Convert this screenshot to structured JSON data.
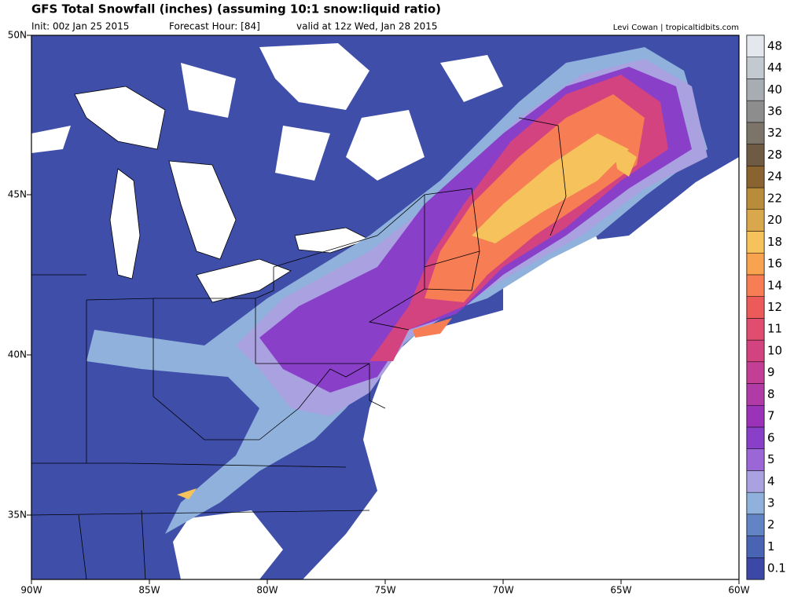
{
  "header": {
    "title": "GFS Total Snowfall (inches) (assuming 10:1 snow:liquid ratio)",
    "init": "Init: 00z Jan 25 2015",
    "forecast_hour": "Forecast Hour: [84]",
    "valid": "valid at 12z Wed, Jan 28 2015",
    "credit": "Levi Cowan | tropicaltidbits.com"
  },
  "map": {
    "lat_labels": [
      "50N",
      "45N",
      "40N",
      "35N"
    ],
    "lon_labels": [
      "90W",
      "85W",
      "80W",
      "75W",
      "70W",
      "65W",
      "60W"
    ]
  },
  "colorbar": {
    "levels": [
      0.1,
      1,
      2,
      3,
      4,
      5,
      6,
      7,
      8,
      9,
      10,
      11,
      12,
      14,
      16,
      18,
      20,
      22,
      24,
      28,
      32,
      36,
      40,
      44,
      48
    ],
    "colors": [
      "#3c48a6",
      "#4a64b4",
      "#6283c4",
      "#8fb1db",
      "#a9a1e0",
      "#9b67d6",
      "#8a3fc9",
      "#9a33b8",
      "#b03aa6",
      "#c23f95",
      "#d2437f",
      "#e04d6f",
      "#ec5a5a",
      "#f77d55",
      "#f8a34f",
      "#f5c25c",
      "#d9a84c",
      "#b98c3c",
      "#8a6430",
      "#6f5a44",
      "#7d7469",
      "#8d8d8d",
      "#a8acb3",
      "#c3c9d1",
      "#e4e8ee"
    ]
  }
}
